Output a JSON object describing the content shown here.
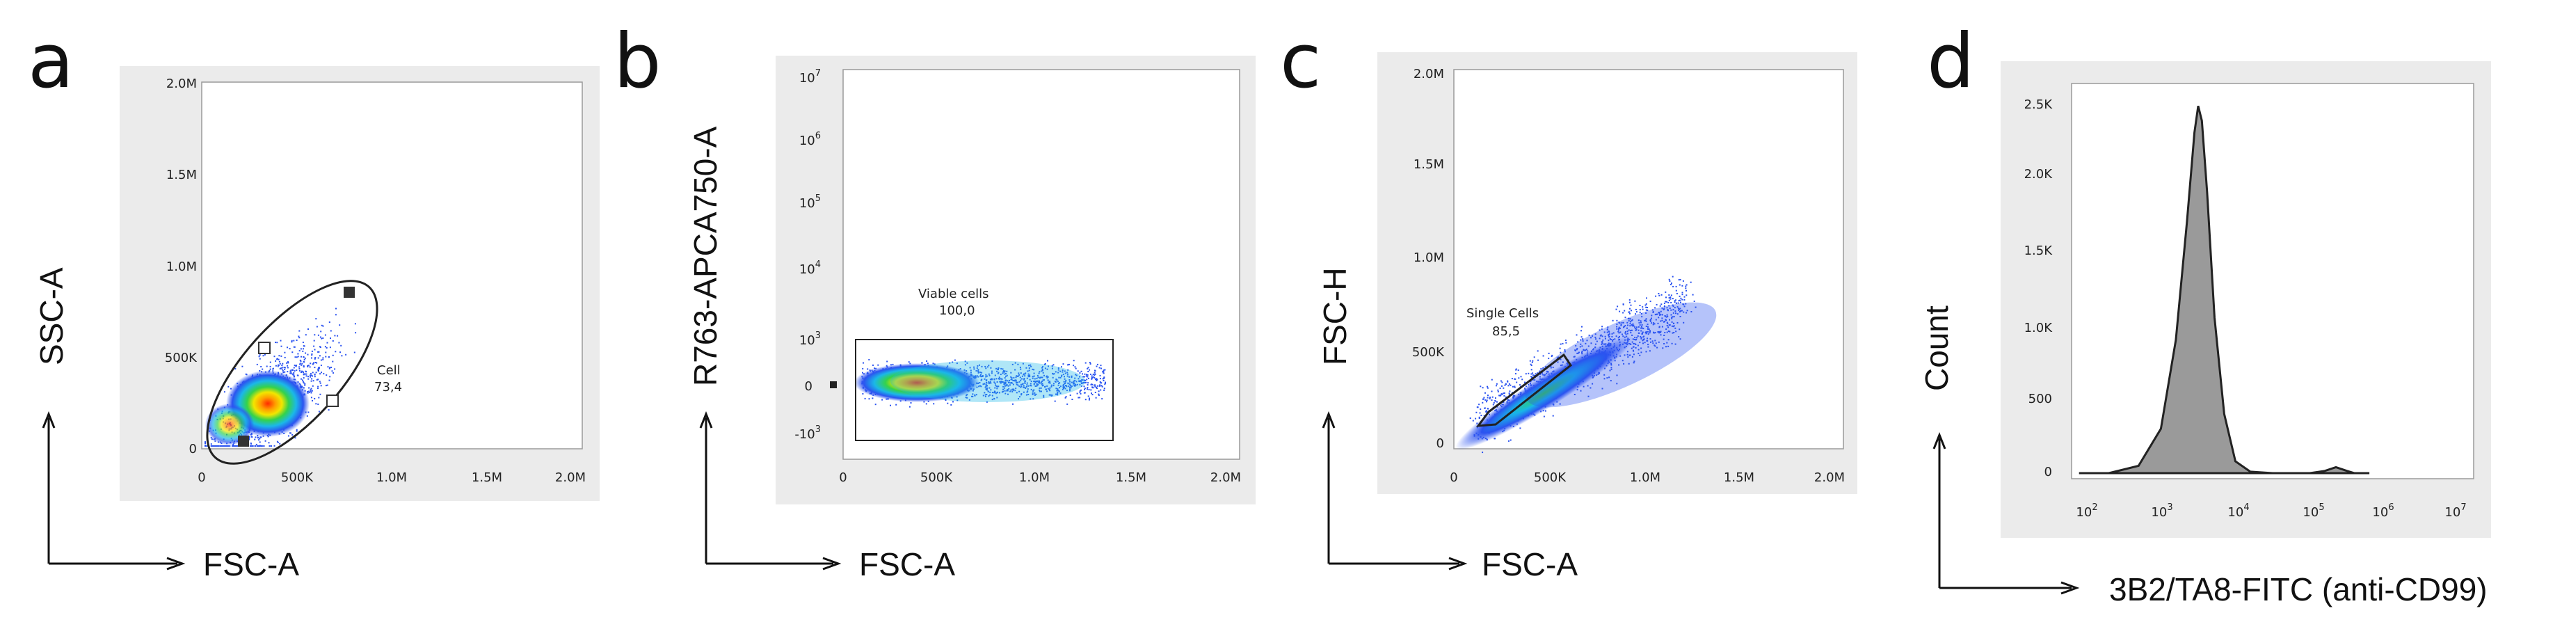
{
  "chart_data": [
    {
      "panel": "a",
      "type": "scatter",
      "xlabel": "FSC-A",
      "ylabel": "SSC-A",
      "xlim": [
        0,
        2000000
      ],
      "ylim": [
        0,
        2000000
      ],
      "x_ticks": [
        "0",
        "500K",
        "1.0M",
        "1.5M",
        "2.0M"
      ],
      "y_ticks": [
        "0",
        "500K",
        "1.0M",
        "1.5M",
        "2.0M"
      ],
      "gate": {
        "name": "Cell",
        "value": "73,4",
        "shape": "ellipse"
      },
      "population": {
        "center": [
          320000,
          200000
        ],
        "spread": [
          180000,
          130000
        ]
      }
    },
    {
      "panel": "b",
      "type": "scatter",
      "xlabel": "FSC-A",
      "ylabel": "R763-APCA750-A",
      "xlim": [
        0,
        2000000
      ],
      "x_ticks": [
        "0",
        "500K",
        "1.0M",
        "1.5M",
        "2.0M"
      ],
      "y_ticks": [
        "-10^3",
        "0",
        "10^3",
        "10^4",
        "10^5",
        "10^6",
        "10^7"
      ],
      "gate": {
        "name": "Viable cells",
        "value": "100,0",
        "shape": "rectangle"
      },
      "population": {
        "center": [
          380000,
          0
        ],
        "spread": [
          280000,
          0.4
        ]
      }
    },
    {
      "panel": "c",
      "type": "scatter",
      "xlabel": "FSC-A",
      "ylabel": "FSC-H",
      "xlim": [
        0,
        2000000
      ],
      "ylim": [
        0,
        2000000
      ],
      "x_ticks": [
        "0",
        "500K",
        "1.0M",
        "1.5M",
        "2.0M"
      ],
      "y_ticks": [
        "0",
        "500K",
        "1.0M",
        "1.5M",
        "2.0M"
      ],
      "gate": {
        "name": "Single Cells",
        "value": "85,5",
        "shape": "polygon"
      },
      "population": {
        "center": [
          500000,
          300000
        ],
        "spread": [
          350000,
          120000
        ]
      }
    },
    {
      "panel": "d",
      "type": "area",
      "xlabel": "3B2/TA8-FITC (anti-CD99)",
      "ylabel": "Count",
      "xscale": "log",
      "ylim": [
        0,
        2600
      ],
      "x_ticks": [
        "10^2",
        "10^3",
        "10^4",
        "10^5",
        "10^6",
        "10^7"
      ],
      "y_ticks": [
        "0",
        "500",
        "1.0K",
        "1.5K",
        "2.0K",
        "2.5K"
      ],
      "x_log": [
        1.9,
        2.3,
        2.7,
        3.0,
        3.2,
        3.35,
        3.45,
        3.5,
        3.55,
        3.62,
        3.72,
        3.85,
        4.0,
        4.2,
        4.5,
        5.0,
        5.2,
        5.35,
        5.5,
        5.6,
        5.8
      ],
      "counts": [
        0,
        0,
        50,
        300,
        900,
        1700,
        2300,
        2480,
        2380,
        1900,
        1050,
        400,
        80,
        10,
        0,
        0,
        15,
        40,
        15,
        0,
        0
      ]
    }
  ]
}
